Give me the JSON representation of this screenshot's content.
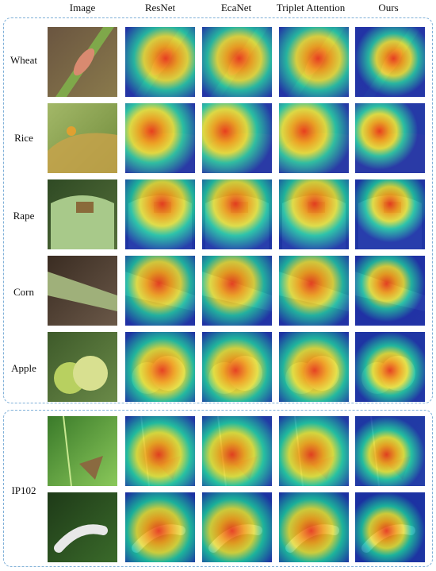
{
  "columns": [
    "Image",
    "ResNet",
    "EcaNet",
    "Triplet Attention",
    "Ours"
  ],
  "groups": [
    {
      "rows": [
        "Wheat",
        "Rice",
        "Rape",
        "Corn",
        "Apple"
      ]
    },
    {
      "label": "IP102",
      "rows": [
        "",
        ""
      ]
    }
  ],
  "colors": {
    "frame": "#7fb0d8",
    "heat_low": "#1a2fb0",
    "heat_mid": "#19c2b0",
    "heat_high": "#e63a1e"
  }
}
